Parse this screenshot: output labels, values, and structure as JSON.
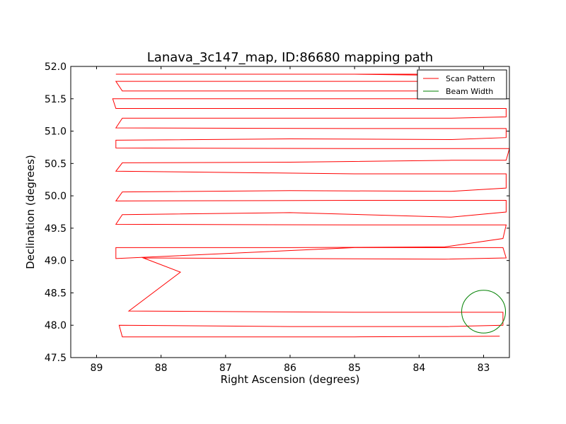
{
  "chart_data": {
    "type": "line",
    "title": "Lanava_3c147_map, ID:86680 mapping path",
    "xlabel": "Right Ascension (degrees)",
    "ylabel": "Declination (degrees)",
    "xlim": [
      89.4,
      82.6
    ],
    "ylim": [
      47.5,
      52.0
    ],
    "x_reversed": true,
    "xticks": [
      89,
      88,
      87,
      86,
      85,
      84,
      83
    ],
    "xtick_labels": [
      "89",
      "88",
      "87",
      "86",
      "85",
      "84",
      "83"
    ],
    "yticks": [
      47.5,
      48.0,
      48.5,
      49.0,
      49.5,
      50.0,
      50.5,
      51.0,
      51.5,
      52.0
    ],
    "ytick_labels": [
      "47.5",
      "48.0",
      "48.5",
      "49.0",
      "49.5",
      "50.0",
      "50.5",
      "51.0",
      "51.5",
      "52.0"
    ],
    "grid": false,
    "legend_position": "top-right",
    "series": [
      {
        "name": "Scan Pattern",
        "color": "#ff0000",
        "x": [
          82.75,
          85.0,
          88.6,
          88.65,
          86.0,
          83.55,
          82.7,
          82.7,
          85.0,
          88.5,
          87.7,
          88.3,
          88.25,
          86.0,
          83.6,
          82.65,
          82.7,
          85.0,
          88.7,
          88.7,
          86.0,
          83.6,
          82.7,
          82.65,
          85.0,
          88.7,
          88.6,
          86.0,
          83.5,
          82.65,
          82.65,
          85.0,
          88.7,
          88.6,
          86.0,
          83.5,
          82.65,
          82.65,
          85.0,
          88.7,
          88.6,
          86.0,
          83.5,
          82.65,
          82.6,
          85.0,
          88.7,
          88.7,
          86.0,
          83.5,
          82.65,
          82.65,
          85.0,
          88.7,
          88.6,
          86.0,
          83.5,
          82.65,
          82.65,
          85.0,
          88.7,
          88.75,
          86.0,
          83.5,
          82.7,
          82.65,
          85.0,
          88.6,
          88.7,
          86.0,
          83.5,
          82.65,
          82.65,
          85.0,
          88.7,
          88.55,
          86.0,
          83.5,
          82.65,
          82.65,
          85.0,
          88.55
        ],
        "y": [
          47.83,
          47.82,
          47.82,
          48.0,
          47.98,
          47.98,
          48.0,
          48.2,
          48.2,
          48.22,
          48.82,
          49.05,
          49.04,
          49.03,
          49.02,
          49.04,
          49.2,
          49.2,
          49.03,
          49.2,
          49.2,
          49.21,
          49.34,
          49.55,
          49.55,
          49.56,
          49.71,
          49.74,
          49.67,
          49.75,
          49.93,
          49.93,
          49.92,
          50.06,
          50.08,
          50.07,
          50.12,
          50.34,
          50.34,
          50.38,
          50.51,
          50.52,
          50.55,
          50.55,
          50.73,
          50.73,
          50.74,
          50.86,
          50.88,
          50.87,
          50.9,
          51.04,
          51.04,
          51.05,
          51.2,
          51.2,
          51.2,
          51.22,
          51.35,
          51.35,
          51.35,
          51.5,
          51.5,
          51.5,
          51.5,
          51.62,
          51.62,
          51.62,
          51.77,
          51.77,
          51.77,
          51.8,
          51.85,
          51.88,
          51.88,
          51.88,
          51.88,
          51.88,
          51.88,
          51.88,
          51.88,
          51.88
        ]
      },
      {
        "name": "Beam Width",
        "color": "#008000",
        "center": [
          83.0,
          48.21
        ],
        "radius_x_deg": 0.34,
        "radius_y_deg": 0.33
      }
    ],
    "legend": [
      "Scan Pattern",
      "Beam Width"
    ]
  }
}
